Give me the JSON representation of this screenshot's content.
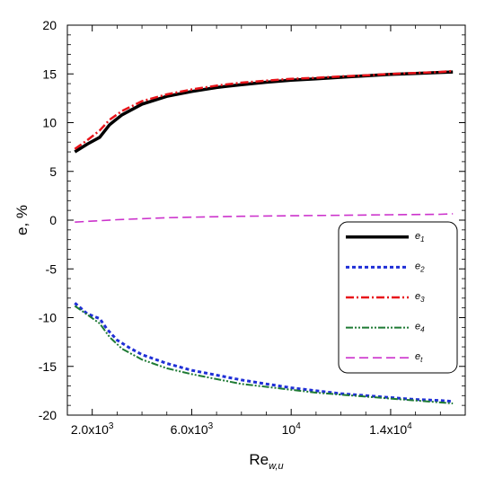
{
  "chart_data": {
    "type": "line",
    "xlabel": "Re",
    "xlabel_sub": "w,u",
    "ylabel": "e, %",
    "xlim": [
      1000,
      17000
    ],
    "ylim": [
      -20,
      20
    ],
    "y_ticks": [
      20,
      15,
      10,
      5,
      0,
      -5,
      -10,
      -15,
      -20
    ],
    "y_tick_labels": [
      "20",
      "15",
      "10",
      "5",
      "0",
      "-5",
      "-10",
      "-15",
      "-20"
    ],
    "x_ticks": [
      {
        "value": 2000,
        "base": "2.0x10",
        "exp": "3"
      },
      {
        "value": 6000,
        "base": "6.0x10",
        "exp": "3"
      },
      {
        "value": 10000,
        "base": "10",
        "exp": "4"
      },
      {
        "value": 14000,
        "base": "1.4x10",
        "exp": "4"
      }
    ],
    "x_minor_step": 1000,
    "y_minor_step": 1,
    "grid": false,
    "legend_position": "center-right",
    "series": [
      {
        "name": "e",
        "sub": "1",
        "color": "#000000",
        "dash": "",
        "width": 3.5,
        "x": [
          1300,
          1800,
          2300,
          2700,
          3200,
          4000,
          5000,
          6000,
          7000,
          8000,
          9000,
          10000,
          11000,
          12000,
          13000,
          14000,
          15000,
          16000,
          16500
        ],
        "y": [
          7.0,
          7.8,
          8.5,
          9.8,
          10.8,
          11.9,
          12.7,
          13.2,
          13.6,
          13.9,
          14.15,
          14.35,
          14.5,
          14.65,
          14.8,
          14.95,
          15.05,
          15.15,
          15.2
        ]
      },
      {
        "name": "e",
        "sub": "2",
        "color": "#1f2fd6",
        "dash": "4,3",
        "width": 3,
        "x": [
          1300,
          1800,
          2300,
          2600,
          3000,
          3500,
          4000,
          5000,
          6000,
          7000,
          8000,
          9000,
          10000,
          11000,
          12000,
          13000,
          14000,
          15000,
          16000,
          16500
        ],
        "y": [
          -8.5,
          -9.6,
          -10.1,
          -11.2,
          -12.3,
          -13.1,
          -13.8,
          -14.7,
          -15.4,
          -15.9,
          -16.4,
          -16.8,
          -17.2,
          -17.5,
          -17.8,
          -18.0,
          -18.2,
          -18.4,
          -18.5,
          -18.6
        ]
      },
      {
        "name": "e",
        "sub": "3",
        "color": "#e8141a",
        "dash": "9,3,2,3",
        "width": 2.5,
        "x": [
          1300,
          1800,
          2300,
          2700,
          3200,
          4000,
          5000,
          6000,
          7000,
          8000,
          9000,
          10000,
          11000,
          12000,
          13000,
          14000,
          15000,
          16000,
          16500
        ],
        "y": [
          7.3,
          8.2,
          9.2,
          10.3,
          11.2,
          12.2,
          12.9,
          13.4,
          13.8,
          14.1,
          14.3,
          14.5,
          14.6,
          14.75,
          14.85,
          15.0,
          15.1,
          15.2,
          15.3
        ]
      },
      {
        "name": "e",
        "sub": "4",
        "color": "#1e7a34",
        "dash": "8,2,2,2,2,2",
        "width": 2,
        "x": [
          1300,
          1800,
          2300,
          2700,
          3200,
          4000,
          5000,
          6000,
          7000,
          8000,
          9000,
          10000,
          11000,
          12000,
          13000,
          14000,
          15000,
          16000,
          16500
        ],
        "y": [
          -8.8,
          -9.7,
          -10.6,
          -12.0,
          -13.2,
          -14.3,
          -15.2,
          -15.8,
          -16.3,
          -16.8,
          -17.1,
          -17.4,
          -17.7,
          -17.9,
          -18.1,
          -18.3,
          -18.5,
          -18.7,
          -18.8
        ]
      },
      {
        "name": "e",
        "sub": "t",
        "color": "#cc33cc",
        "dash": "10,5",
        "width": 1.6,
        "x": [
          1300,
          2000,
          3000,
          4000,
          5000,
          6000,
          8000,
          10000,
          12000,
          14000,
          16000,
          16500
        ],
        "y": [
          -0.2,
          -0.1,
          0.05,
          0.15,
          0.25,
          0.3,
          0.4,
          0.45,
          0.5,
          0.55,
          0.6,
          0.65
        ]
      }
    ]
  }
}
